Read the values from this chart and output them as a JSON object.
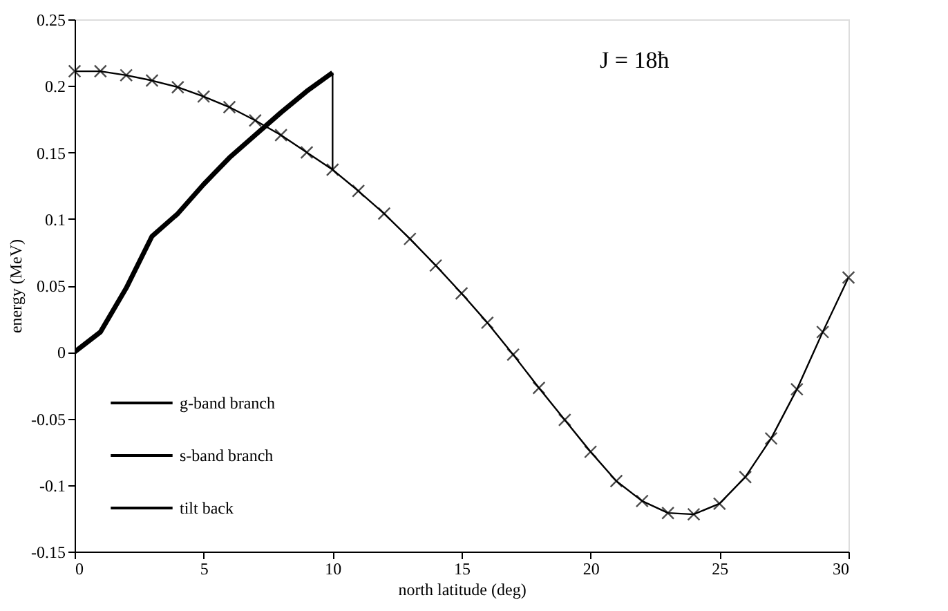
{
  "chart_data": {
    "type": "line",
    "xlabel": "north latitude (deg)",
    "ylabel": "energy (MeV)",
    "xlim": [
      0,
      30
    ],
    "xticks": [
      0,
      5,
      10,
      15,
      20,
      25,
      30
    ],
    "ylim": [
      -0.15,
      0.25
    ],
    "yticks": [
      -0.15,
      -0.1,
      -0.05,
      0,
      0.05,
      0.1,
      0.15,
      0.2,
      0.25
    ],
    "grid": false,
    "legend": "bottom left",
    "annotations": [
      "J = 18ħ"
    ],
    "series": [
      {
        "name": "g-band branch",
        "color": "#000000",
        "marker": "none",
        "x": [
          0,
          1,
          2,
          3,
          4,
          5,
          6,
          7,
          8,
          9,
          10
        ],
        "values": [
          0.0,
          0.015,
          0.048,
          0.087,
          0.104,
          0.126,
          0.146,
          0.163,
          0.18,
          0.196,
          0.21
        ]
      },
      {
        "name": "s-band branch",
        "color": "#000000",
        "marker": "cross",
        "x": [
          0,
          1,
          2,
          3,
          4,
          5,
          6,
          7,
          8,
          9,
          10,
          11,
          12,
          13,
          14,
          15,
          16,
          17,
          18,
          19,
          20,
          21,
          22,
          23,
          24,
          25,
          26,
          27,
          28,
          29,
          30
        ],
        "values": [
          0.211,
          0.211,
          0.208,
          0.204,
          0.199,
          0.192,
          0.184,
          0.174,
          0.163,
          0.15,
          0.137,
          0.121,
          0.104,
          0.085,
          0.065,
          0.044,
          0.022,
          -0.002,
          -0.027,
          -0.051,
          -0.075,
          -0.097,
          -0.112,
          -0.121,
          -0.122,
          -0.114,
          -0.094,
          -0.065,
          -0.028,
          0.015,
          0.056
        ]
      },
      {
        "name": "tilt back",
        "color": "#000000",
        "marker": "none",
        "x": [
          10,
          10
        ],
        "values": [
          0.21,
          0.137
        ]
      }
    ]
  }
}
